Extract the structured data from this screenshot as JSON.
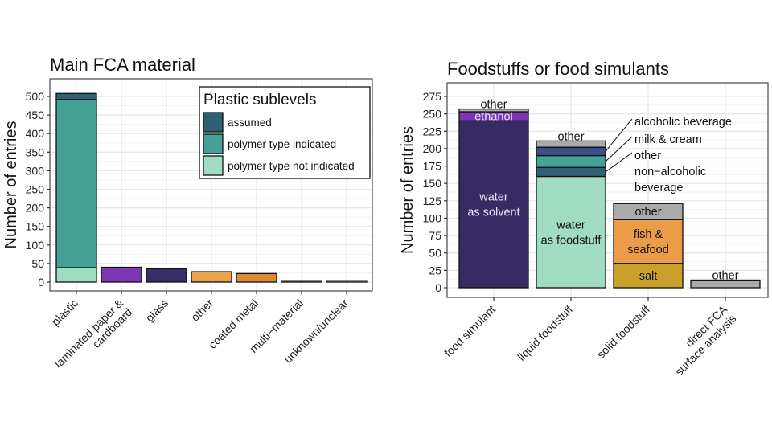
{
  "chart_data": [
    {
      "type": "bar",
      "stacked": true,
      "title": "Main FCA material",
      "xlabel": "",
      "ylabel": "Number of entries",
      "ylim": [
        0,
        520
      ],
      "yticks": [
        0,
        50,
        100,
        150,
        200,
        250,
        300,
        350,
        400,
        450,
        500
      ],
      "grid": true,
      "categories": [
        "plastic",
        "laminated paper &\ncardboard",
        "glass",
        "other",
        "coated metal",
        "multi−material",
        "unknown/unclear"
      ],
      "category_colors": [
        "",
        "#7b35b5",
        "#382c64",
        "#e9a24a",
        "#dc8a37",
        "#9a5a2c",
        "#9a9a9a"
      ],
      "values": [
        508,
        40,
        36,
        28,
        23,
        4,
        4
      ],
      "plastic_stack": [
        {
          "name": "polymer type not indicated",
          "value": 39,
          "color": "#a0dcc2"
        },
        {
          "name": "polymer type indicated",
          "value": 453,
          "color": "#45a196"
        },
        {
          "name": "assumed",
          "value": 16,
          "color": "#2e6272"
        }
      ],
      "legend": {
        "title": "Plastic sublevels",
        "placement": "top-right",
        "entries": [
          {
            "label": "assumed",
            "color": "#2e6272"
          },
          {
            "label": "polymer type indicated",
            "color": "#45a196"
          },
          {
            "label": "polymer type not indicated",
            "color": "#a0dcc2"
          }
        ]
      }
    },
    {
      "type": "bar",
      "stacked": true,
      "title": "Foodstuffs or food simulants",
      "xlabel": "",
      "ylabel": "Number of entries",
      "ylim": [
        0,
        285
      ],
      "yticks": [
        0,
        25,
        50,
        75,
        100,
        125,
        150,
        175,
        200,
        225,
        250,
        275
      ],
      "grid": true,
      "categories": [
        "food simulant",
        "liquid foodstuff",
        "solid foodstuff",
        "direct FCA\nsurface analysis"
      ],
      "stacks": [
        [
          {
            "name": "water\nas solvent",
            "value": 240,
            "color": "#372b63",
            "label_color": "#e8e4f4"
          },
          {
            "name": "ethanol",
            "value": 13,
            "color": "#7b35b5",
            "label_color": "#e8e4f4"
          },
          {
            "name": "other",
            "value": 4,
            "color": "#aaaaaa",
            "label_above": true
          }
        ],
        [
          {
            "name": "water\nas foodstuff",
            "value": 160,
            "color": "#a0dcc2"
          },
          {
            "name": "other\nnon−alcoholic\nbeverage",
            "value": 13,
            "color": "#2e6272",
            "callout": true
          },
          {
            "name": "milk & cream",
            "value": 17,
            "color": "#45a196",
            "callout": true
          },
          {
            "name": "alcoholic beverage",
            "value": 12,
            "color": "#3a4f8c",
            "callout": true
          },
          {
            "name": "other",
            "value": 9,
            "color": "#aaaaaa",
            "label_above": true
          }
        ],
        [
          {
            "name": "salt",
            "value": 35,
            "color": "#c9a02c"
          },
          {
            "name": "fish &\nseafood",
            "value": 63,
            "color": "#eb9c49"
          },
          {
            "name": "other",
            "value": 23,
            "color": "#aaaaaa"
          }
        ],
        [
          {
            "name": "other",
            "value": 11,
            "color": "#aaaaaa",
            "label_above": true
          }
        ]
      ]
    }
  ]
}
